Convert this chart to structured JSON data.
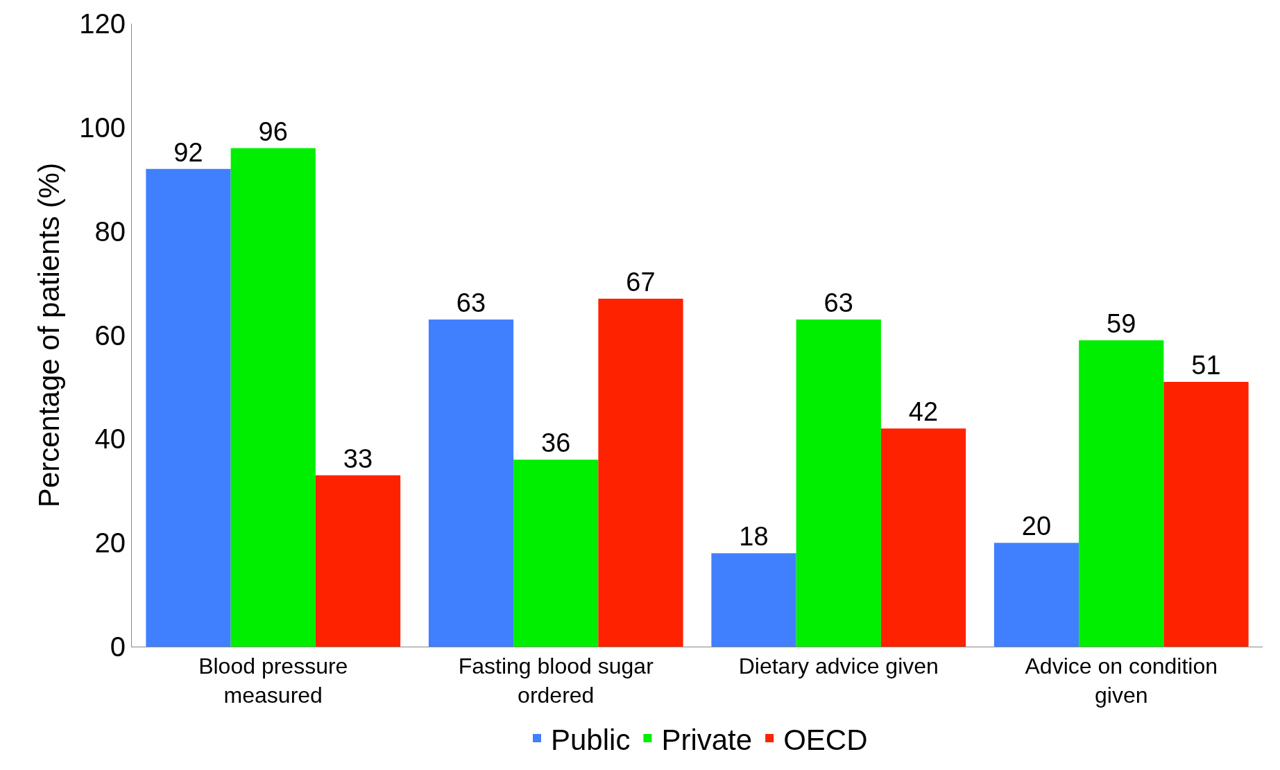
{
  "chart_data": {
    "type": "bar",
    "ylabel": "Percentage of patients (%)",
    "categories": [
      "Blood pressure measured",
      "Fasting blood sugar ordered",
      "Dietary advice given",
      "Advice on condition given"
    ],
    "series": [
      {
        "name": "Public",
        "color": "#4080ff",
        "values": [
          92,
          63,
          18,
          20
        ]
      },
      {
        "name": "Private",
        "color": "#00ee00",
        "values": [
          96,
          36,
          63,
          59
        ]
      },
      {
        "name": "OECD",
        "color": "#ff2200",
        "values": [
          33,
          67,
          42,
          51
        ]
      }
    ],
    "ylim": [
      0,
      120
    ],
    "yticks": [
      0,
      20,
      40,
      60,
      80,
      100,
      120
    ],
    "data_labels": true,
    "legend": "bottom"
  }
}
